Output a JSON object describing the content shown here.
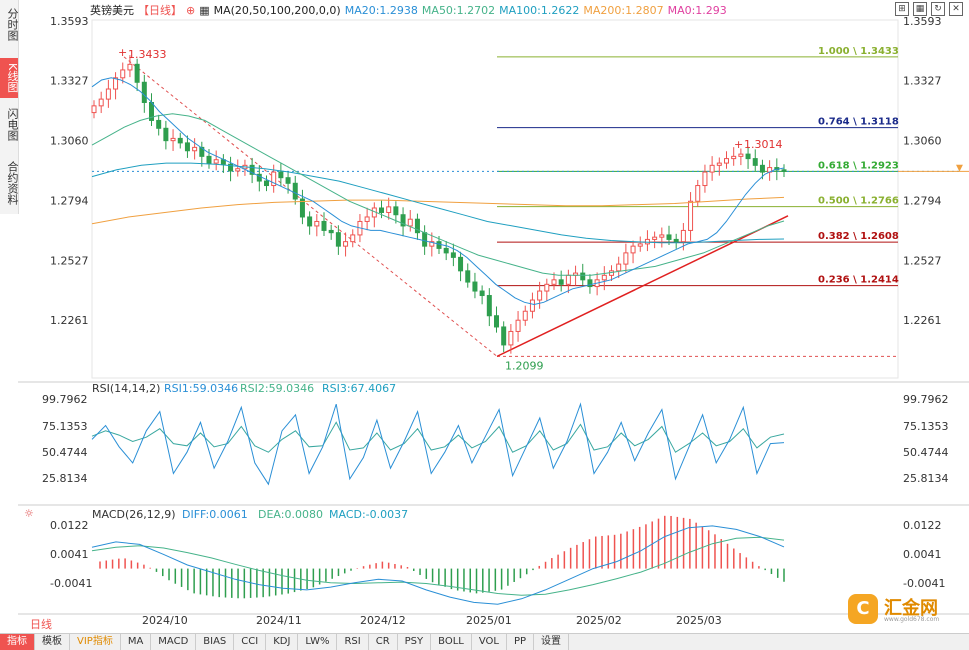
{
  "sidebar": {
    "tabs": [
      {
        "label": "分时图"
      },
      {
        "label": "K线图"
      },
      {
        "label": "闪电图"
      },
      {
        "label": "合约资料"
      }
    ]
  },
  "header": {
    "symbol": "英镑美元",
    "period": "【日线】",
    "ma_label": "MA(20,50,100,200,0,0)",
    "ma20": "MA20:1.2938",
    "ma50": "MA50:1.2702",
    "ma100": "MA100:1.2622",
    "ma200": "MA200:1.2807",
    "ma0": "MA0:1.293"
  },
  "colors": {
    "up": "#ef5350",
    "down": "#2e9e4e",
    "ma20": "#2a8fd6",
    "ma50": "#46b38a",
    "ma100": "#1f55a8",
    "ma200": "#f0a040",
    "ma0": "#e040a0"
  },
  "chart_data": [
    {
      "type": "candlestick",
      "title": "英镑美元 日线",
      "x_tick_labels": [
        "2024/10",
        "2024/11",
        "2024/12",
        "2025/01",
        "2025/02",
        "2025/03"
      ],
      "y_tick_labels": [
        "1.3593",
        "1.3327",
        "1.3060",
        "1.2794",
        "1.2527",
        "1.2261"
      ],
      "ylim": [
        1.2099,
        1.3593
      ],
      "annotations": {
        "high": "1.3433",
        "low": "1.2099",
        "recent_high": "1.3014",
        "current_price": "1.2923"
      },
      "fibonacci": [
        {
          "label": "1.000 \\ 1.3433",
          "value": 1.3433,
          "color": "#8ab030"
        },
        {
          "label": "0.764 \\ 1.3118",
          "value": 1.3118,
          "color": "#1a2a8a"
        },
        {
          "label": "0.618 \\ 1.2923",
          "value": 1.2923,
          "color": "#33aa33"
        },
        {
          "label": "0.500 \\ 1.2766",
          "value": 1.2766,
          "color": "#8ab030"
        },
        {
          "label": "0.382 \\ 1.2608",
          "value": 1.2608,
          "color": "#b01010"
        },
        {
          "label": "0.236 \\ 1.2414",
          "value": 1.2414,
          "color": "#b01010"
        }
      ],
      "ma_values": {
        "MA20": 1.2938,
        "MA50": 1.2702,
        "MA100": 1.2622,
        "MA200": 1.2807,
        "MA0": 1.293
      },
      "closes": [
        1.3215,
        1.3245,
        1.329,
        1.334,
        1.3375,
        1.34,
        1.332,
        1.323,
        1.315,
        1.3115,
        1.306,
        1.307,
        1.305,
        1.3015,
        1.303,
        1.299,
        1.296,
        1.2975,
        1.2955,
        1.2925,
        1.2935,
        1.295,
        1.291,
        1.288,
        1.286,
        1.292,
        1.2895,
        1.287,
        1.28,
        1.272,
        1.268,
        1.27,
        1.266,
        1.265,
        1.259,
        1.261,
        1.264,
        1.27,
        1.272,
        1.276,
        1.274,
        1.2765,
        1.273,
        1.268,
        1.271,
        1.265,
        1.259,
        1.261,
        1.258,
        1.256,
        1.254,
        1.248,
        1.243,
        1.239,
        1.237,
        1.228,
        1.223,
        1.215,
        1.221,
        1.226,
        1.23,
        1.235,
        1.239,
        1.242,
        1.244,
        1.242,
        1.246,
        1.247,
        1.244,
        1.241,
        1.244,
        1.246,
        1.248,
        1.251,
        1.256,
        1.259,
        1.26,
        1.262,
        1.263,
        1.264,
        1.262,
        1.261,
        1.266,
        1.279,
        1.286,
        1.292,
        1.295,
        1.296,
        1.298,
        1.299,
        1.3,
        1.298,
        1.295,
        1.292,
        1.294,
        1.293,
        1.2923
      ],
      "ma20_series": [
        1.33,
        1.333,
        1.334,
        1.333,
        1.331,
        1.328,
        1.324,
        1.319,
        1.315,
        1.311,
        1.307,
        1.304,
        1.301,
        1.299,
        1.297,
        1.295,
        1.293,
        1.291,
        1.289,
        1.287,
        1.285,
        1.283,
        1.281,
        1.279,
        1.276,
        1.273,
        1.27,
        1.268,
        1.267,
        1.266,
        1.266,
        1.265,
        1.264,
        1.263,
        1.262,
        1.261,
        1.26,
        1.259,
        1.257,
        1.254,
        1.25,
        1.246,
        1.242,
        1.239,
        1.236,
        1.234,
        1.233,
        1.234,
        1.236,
        1.238,
        1.24,
        1.241,
        1.242,
        1.243,
        1.244,
        1.246,
        1.248,
        1.25,
        1.252,
        1.254,
        1.256,
        1.258,
        1.26,
        1.261,
        1.262,
        1.265,
        1.27,
        1.276,
        1.282,
        1.287,
        1.291,
        1.293,
        1.2938
      ],
      "ma50_series": [
        1.304,
        1.308,
        1.312,
        1.315,
        1.317,
        1.318,
        1.317,
        1.315,
        1.311,
        1.307,
        1.303,
        1.299,
        1.295,
        1.291,
        1.287,
        1.283,
        1.279,
        1.276,
        1.273,
        1.27,
        1.267,
        1.264,
        1.261,
        1.258,
        1.255,
        1.253,
        1.251,
        1.249,
        1.247,
        1.246,
        1.246,
        1.246,
        1.247,
        1.248,
        1.249,
        1.25,
        1.252,
        1.254,
        1.256,
        1.259,
        1.262,
        1.265,
        1.268,
        1.2702
      ],
      "ma100_series": [
        1.29,
        1.293,
        1.295,
        1.296,
        1.296,
        1.2955,
        1.2945,
        1.2935,
        1.292,
        1.29,
        1.288,
        1.285,
        1.282,
        1.279,
        1.276,
        1.273,
        1.27,
        1.268,
        1.266,
        1.264,
        1.2625,
        1.2615,
        1.261,
        1.2605,
        1.2605,
        1.261,
        1.2615,
        1.262,
        1.2622
      ],
      "ma200_series": [
        1.269,
        1.272,
        1.274,
        1.276,
        1.2775,
        1.2785,
        1.279,
        1.2795,
        1.2795,
        1.279,
        1.2785,
        1.278,
        1.2775,
        1.277,
        1.277,
        1.2775,
        1.278,
        1.279,
        1.28,
        1.2807
      ]
    },
    {
      "type": "line",
      "title": "RSI(14,14,2)",
      "legend": [
        "RSI1:59.0346",
        "RSI2:59.0346",
        "RSI3:67.4067"
      ],
      "y_tick_labels": [
        "99.7962",
        "75.1353",
        "50.4744",
        "25.8134"
      ],
      "ylim": [
        10,
        100
      ],
      "series": [
        {
          "name": "RSI1",
          "values": [
            62,
            75,
            55,
            40,
            70,
            88,
            30,
            50,
            78,
            35,
            60,
            92,
            40,
            20,
            70,
            85,
            30,
            55,
            95,
            25,
            45,
            80,
            35,
            60,
            88,
            30,
            50,
            75,
            40,
            65,
            90,
            28,
            55,
            82,
            35,
            60,
            95,
            30,
            50,
            78,
            42,
            68,
            90,
            25,
            55,
            85,
            40,
            62,
            92,
            30,
            58,
            59
          ]
        },
        {
          "name": "RSI3",
          "values": [
            65,
            70,
            66,
            60,
            64,
            72,
            58,
            56,
            68,
            55,
            58,
            74,
            56,
            50,
            62,
            70,
            55,
            56,
            78,
            52,
            54,
            68,
            52,
            58,
            72,
            52,
            55,
            66,
            54,
            60,
            74,
            50,
            56,
            70,
            52,
            58,
            76,
            52,
            55,
            68,
            56,
            62,
            74,
            50,
            58,
            68,
            56,
            60,
            72,
            54,
            64,
            67
          ]
        }
      ]
    },
    {
      "type": "bar",
      "title": "MACD(26,12,9)",
      "legend": [
        "DIFF:0.0061",
        "DEA:0.0080",
        "MACD:-0.0037"
      ],
      "y_tick_labels": [
        "0.0122",
        "0.0041",
        "-0.0041"
      ],
      "ylim": [
        -0.012,
        0.016
      ],
      "series": [
        {
          "name": "DIFF",
          "values": [
            0.006,
            0.0075,
            0.0068,
            0.004,
            0.001,
            -0.001,
            -0.003,
            -0.0045,
            -0.0055,
            -0.006,
            -0.0052,
            -0.004,
            -0.003,
            -0.0035,
            -0.006,
            -0.008,
            -0.0095,
            -0.01,
            -0.0085,
            -0.006,
            -0.003,
            0.0,
            0.002,
            0.005,
            0.009,
            0.0115,
            0.012,
            0.011,
            0.009,
            0.0061
          ]
        },
        {
          "name": "DEA",
          "values": [
            0.005,
            0.006,
            0.0064,
            0.0058,
            0.0045,
            0.003,
            0.0012,
            -0.0005,
            -0.002,
            -0.0033,
            -0.004,
            -0.0042,
            -0.004,
            -0.0038,
            -0.0042,
            -0.005,
            -0.006,
            -0.007,
            -0.0075,
            -0.0072,
            -0.006,
            -0.0045,
            -0.0028,
            -0.001,
            0.0015,
            0.0045,
            0.007,
            0.0085,
            0.0088,
            0.008
          ]
        },
        {
          "name": "MACD",
          "values": [
            0.002,
            0.003,
            0.0008,
            -0.0036,
            -0.007,
            -0.008,
            -0.0084,
            -0.008,
            -0.007,
            -0.0054,
            -0.0024,
            0.0004,
            0.002,
            0.0006,
            -0.0036,
            -0.006,
            -0.007,
            -0.006,
            -0.002,
            0.0024,
            0.006,
            0.009,
            0.0096,
            0.012,
            0.015,
            0.014,
            0.01,
            0.005,
            0.0004,
            -0.0037
          ]
        }
      ]
    }
  ],
  "bottom": {
    "period": "日线",
    "items": [
      "指标",
      "模板",
      "VIP指标",
      "MA",
      "MACD",
      "BIAS",
      "CCI",
      "KDJ",
      "LW%",
      "RSI",
      "CR",
      "PSY",
      "BOLL",
      "VOL",
      "PP",
      "设置"
    ]
  },
  "logo": {
    "mark": "C",
    "text": "汇金网",
    "sub": "www.gold678.com"
  }
}
